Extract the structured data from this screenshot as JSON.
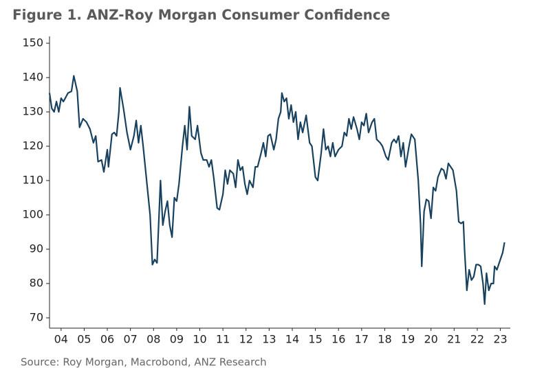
{
  "chart_data": {
    "type": "line",
    "title": "Figure 1. ANZ-Roy Morgan Consumer Confidence",
    "source": "Source: Roy Morgan, Macrobond, ANZ Research",
    "x": [
      2004.0,
      2004.1,
      2004.2,
      2004.3,
      2004.4,
      2004.5,
      2004.6,
      2004.8,
      2004.95,
      2005.05,
      2005.2,
      2005.3,
      2005.45,
      2005.6,
      2005.75,
      2005.9,
      2006.0,
      2006.1,
      2006.25,
      2006.35,
      2006.5,
      2006.55,
      2006.7,
      2006.8,
      2006.9,
      2007.0,
      2007.05,
      2007.2,
      2007.35,
      2007.5,
      2007.65,
      2007.75,
      2007.85,
      2007.95,
      2008.05,
      2008.2,
      2008.35,
      2008.45,
      2008.55,
      2008.65,
      2008.8,
      2008.9,
      2009.0,
      2009.1,
      2009.2,
      2009.3,
      2009.4,
      2009.5,
      2009.6,
      2009.75,
      2009.85,
      2009.95,
      2010.05,
      2010.15,
      2010.3,
      2010.4,
      2010.55,
      2010.65,
      2010.8,
      2010.9,
      2011.0,
      2011.1,
      2011.25,
      2011.35,
      2011.5,
      2011.6,
      2011.7,
      2011.8,
      2011.95,
      2012.05,
      2012.15,
      2012.25,
      2012.35,
      2012.45,
      2012.55,
      2012.65,
      2012.8,
      2012.9,
      2013.0,
      2013.15,
      2013.25,
      2013.35,
      2013.45,
      2013.55,
      2013.7,
      2013.8,
      2013.9,
      2014.0,
      2014.05,
      2014.15,
      2014.25,
      2014.35,
      2014.45,
      2014.55,
      2014.65,
      2014.75,
      2014.85,
      2014.95,
      2015.1,
      2015.25,
      2015.35,
      2015.5,
      2015.6,
      2015.75,
      2015.85,
      2015.95,
      2016.05,
      2016.15,
      2016.25,
      2016.35,
      2016.5,
      2016.65,
      2016.75,
      2016.85,
      2016.95,
      2017.05,
      2017.15,
      2017.3,
      2017.4,
      2017.5,
      2017.6,
      2017.7,
      2017.8,
      2017.95,
      2018.05,
      2018.15,
      2018.3,
      2018.4,
      2018.55,
      2018.65,
      2018.8,
      2018.9,
      2019.0,
      2019.1,
      2019.2,
      2019.3,
      2019.4,
      2019.55,
      2019.65,
      2019.8,
      2019.95,
      2020.05,
      2020.1,
      2020.2,
      2020.3,
      2020.4,
      2020.5,
      2020.6,
      2020.7,
      2020.8,
      2020.95,
      2021.05,
      2021.15,
      2021.25,
      2021.35,
      2021.45,
      2021.6,
      2021.7,
      2021.8,
      2021.9,
      2021.95,
      2022.05,
      2022.15,
      2022.25,
      2022.35,
      2022.45,
      2022.55,
      2022.65,
      2022.75,
      2022.82,
      2022.9,
      2023.0,
      2023.1,
      2023.2,
      2023.25,
      2023.35,
      2023.5,
      2023.6,
      2023.68
    ],
    "series": [
      {
        "name": "Consumer Confidence",
        "color": "#17415f",
        "values": [
          135.5,
          131,
          130,
          133,
          130,
          134,
          133,
          135.5,
          136,
          140.5,
          136,
          125.5,
          128,
          127,
          125,
          121,
          123,
          115.5,
          116,
          112.5,
          119,
          114,
          123.5,
          124,
          123,
          130,
          137,
          131,
          124,
          119,
          123,
          127.5,
          121,
          126,
          120,
          110,
          100,
          85.5,
          87,
          86,
          110,
          97,
          101,
          104,
          97,
          93.5,
          105,
          104,
          109,
          120,
          126,
          119,
          131.5,
          123,
          122,
          126,
          118,
          116,
          116,
          114,
          116,
          111,
          102,
          101.5,
          106,
          113,
          109,
          113,
          112,
          108,
          116,
          113,
          114,
          109,
          106,
          110,
          108,
          114,
          114,
          118,
          121,
          117,
          123,
          123.5,
          119,
          122,
          128,
          130,
          135.5,
          133,
          134,
          128,
          132,
          127,
          130,
          122,
          127,
          124,
          129,
          121,
          120,
          111,
          110,
          118,
          125,
          119,
          120,
          117,
          121,
          117,
          119,
          120,
          124,
          123,
          128,
          125,
          128.5,
          125,
          122,
          127,
          126,
          129.5,
          124,
          127,
          128,
          122,
          121,
          120,
          117,
          116,
          121,
          122,
          121,
          123,
          117,
          121,
          114,
          120,
          123.5,
          122,
          110,
          97,
          85,
          101,
          104.5,
          104,
          99,
          108,
          107,
          111,
          113.5,
          113,
          110.5,
          115,
          114,
          113,
          107,
          98,
          97.5,
          98,
          90,
          78,
          84,
          81,
          82,
          85.5,
          85.5,
          85,
          80,
          74,
          83,
          78,
          80,
          80,
          85,
          84,
          87,
          89,
          92
        ]
      }
    ],
    "xlim": [
      2004,
      2023.93
    ],
    "xticks": [
      {
        "value": 2004.5,
        "label": "04"
      },
      {
        "value": 2005.5,
        "label": "05"
      },
      {
        "value": 2006.5,
        "label": "06"
      },
      {
        "value": 2007.5,
        "label": "07"
      },
      {
        "value": 2008.5,
        "label": "08"
      },
      {
        "value": 2009.5,
        "label": "09"
      },
      {
        "value": 2010.5,
        "label": "10"
      },
      {
        "value": 2011.5,
        "label": "11"
      },
      {
        "value": 2012.5,
        "label": "12"
      },
      {
        "value": 2013.5,
        "label": "13"
      },
      {
        "value": 2014.5,
        "label": "14"
      },
      {
        "value": 2015.5,
        "label": "15"
      },
      {
        "value": 2016.5,
        "label": "16"
      },
      {
        "value": 2017.5,
        "label": "17"
      },
      {
        "value": 2018.5,
        "label": "18"
      },
      {
        "value": 2019.5,
        "label": "19"
      },
      {
        "value": 2020.5,
        "label": "20"
      },
      {
        "value": 2021.5,
        "label": "21"
      },
      {
        "value": 2022.5,
        "label": "22"
      },
      {
        "value": 2023.5,
        "label": "23"
      }
    ],
    "ylim": [
      67,
      152
    ],
    "yticks": [
      70,
      80,
      90,
      100,
      110,
      120,
      130,
      140,
      150
    ]
  }
}
